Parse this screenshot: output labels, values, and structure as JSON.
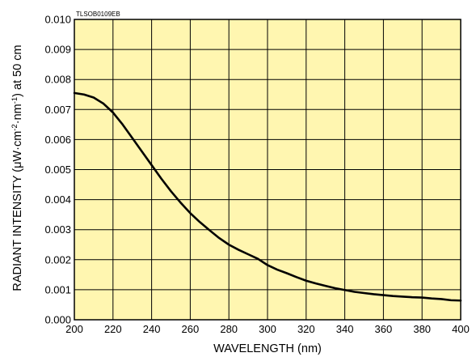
{
  "chart_data": {
    "type": "line",
    "title": "",
    "document_code": "TLSOB0109EB",
    "xlabel": "WAVELENGTH (nm)",
    "ylabel_parts": [
      "RADIANT INTENSITY (",
      "μ",
      "W·cm",
      "-2",
      "·nm",
      "-1",
      ") at 50 cm"
    ],
    "xlim": [
      200,
      400
    ],
    "ylim": [
      0,
      0.01
    ],
    "x_ticks": [
      "200",
      "220",
      "240",
      "260",
      "280",
      "300",
      "320",
      "340",
      "360",
      "380",
      "400"
    ],
    "y_ticks": [
      "0.000",
      "0.001",
      "0.002",
      "0.003",
      "0.004",
      "0.005",
      "0.006",
      "0.007",
      "0.008",
      "0.009",
      "0.010"
    ],
    "grid": true,
    "legend": "none",
    "plot_background": "#FFF6B0",
    "line_color": "#000000",
    "series": [
      {
        "x": [
          200,
          205,
          210,
          215,
          220,
          225,
          230,
          235,
          240,
          245,
          250,
          255,
          260,
          265,
          270,
          275,
          280,
          285,
          290,
          295,
          300,
          305,
          310,
          315,
          320,
          325,
          330,
          335,
          340,
          345,
          350,
          355,
          360,
          365,
          370,
          375,
          380,
          385,
          390,
          395,
          400
        ],
        "y": [
          0.00755,
          0.0075,
          0.0074,
          0.0072,
          0.0069,
          0.0065,
          0.00605,
          0.0056,
          0.00515,
          0.0047,
          0.00428,
          0.0039,
          0.00355,
          0.00325,
          0.00298,
          0.00272,
          0.0025,
          0.00233,
          0.00218,
          0.00203,
          0.00182,
          0.00167,
          0.00155,
          0.00142,
          0.0013,
          0.00121,
          0.00113,
          0.00105,
          0.00099,
          0.00093,
          0.00089,
          0.00085,
          0.00082,
          0.00079,
          0.00077,
          0.00075,
          0.00074,
          0.00071,
          0.00069,
          0.00065,
          0.00064
        ]
      }
    ]
  }
}
